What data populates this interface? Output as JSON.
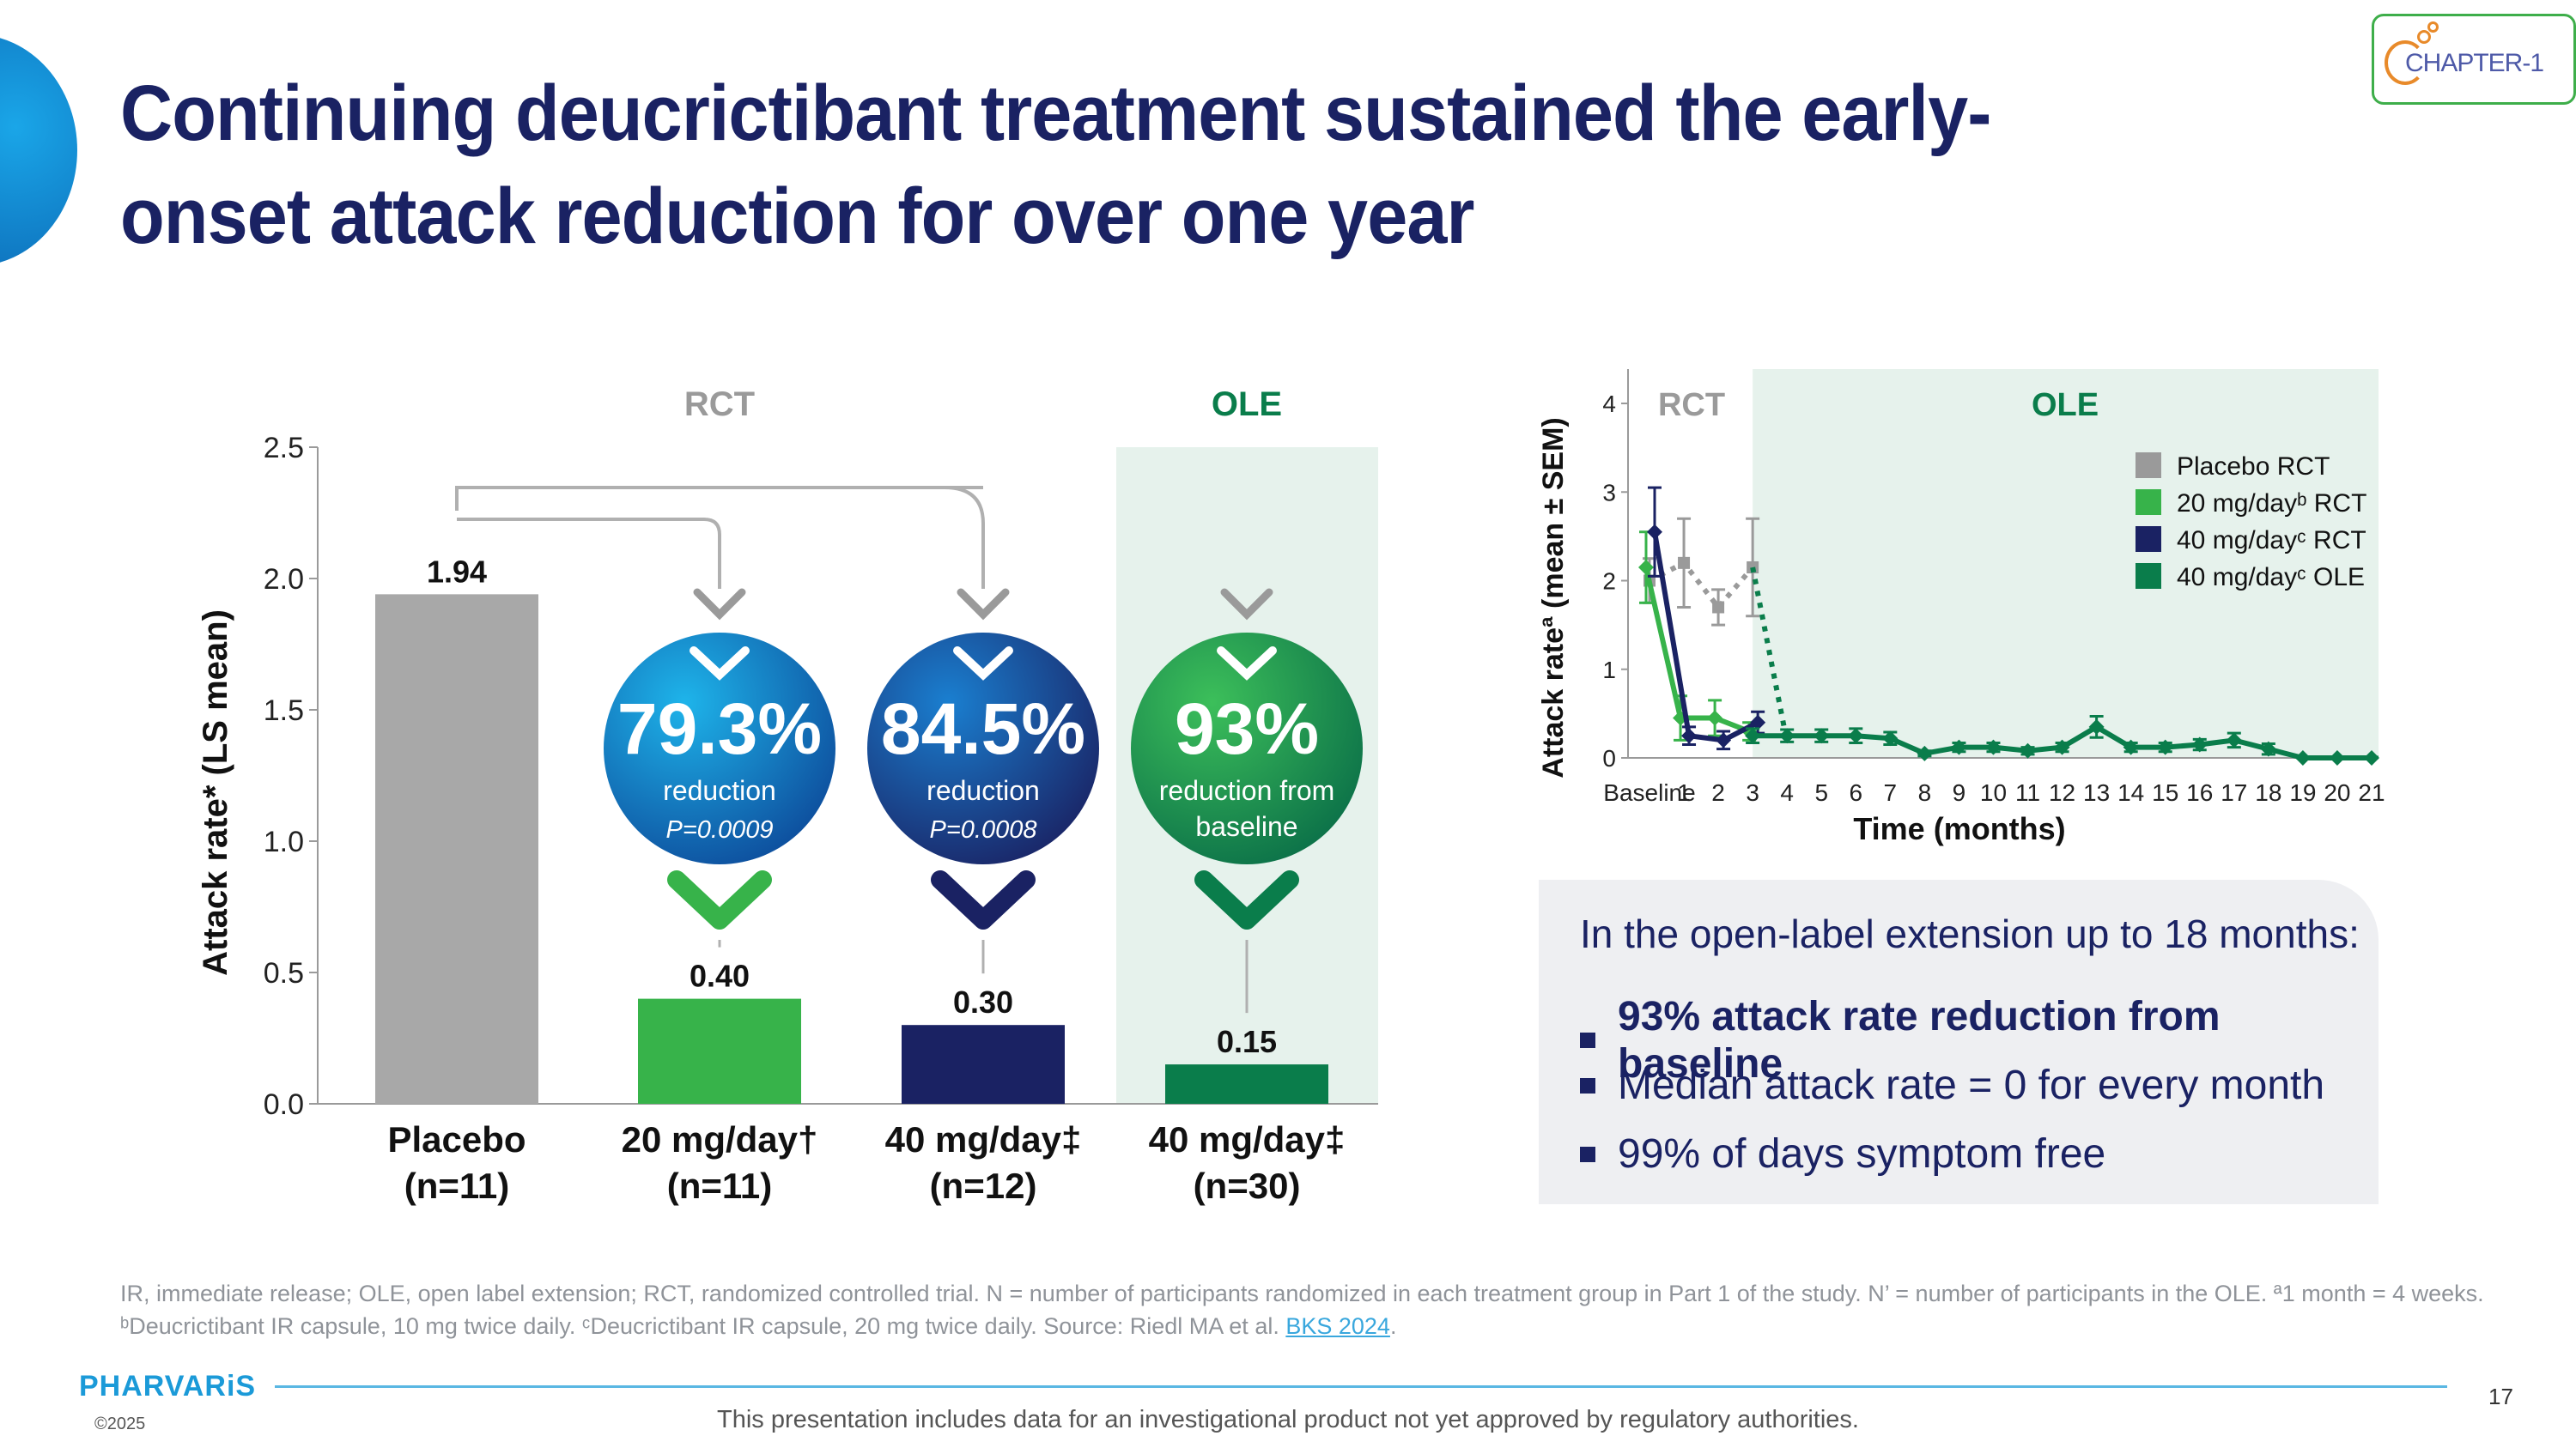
{
  "title": "Continuing deucrictibant treatment sustained the early-onset attack reduction for over one year",
  "logo": {
    "text": "CHAPTER-1"
  },
  "colors": {
    "navy": "#1a2263",
    "placebo": "#a8a8a8",
    "green20": "#37b34a",
    "navy40": "#1a2263",
    "ole": "#0a7d4b",
    "ole_bg": "#e6f2ec"
  },
  "chart_data": [
    {
      "type": "bar",
      "ylabel": "Attack rate* (LS mean)",
      "ylim": [
        0,
        2.5
      ],
      "yticks": [
        "0.0",
        "0.5",
        "1.0",
        "1.5",
        "2.0",
        "2.5"
      ],
      "groups": [
        {
          "label": "RCT",
          "color": "#9a9a9a"
        },
        {
          "label": "OLE",
          "color": "#0a7d4b"
        }
      ],
      "categories": [
        {
          "line1": "Placebo",
          "line2": "(n=11)"
        },
        {
          "line1": "20 mg/day†",
          "line2": "(n=11)"
        },
        {
          "line1": "40 mg/day‡",
          "line2": "(n=12)"
        },
        {
          "line1": "40 mg/day‡",
          "line2": "(n=30)"
        }
      ],
      "values": [
        1.94,
        0.4,
        0.3,
        0.15
      ],
      "value_labels": [
        "1.94",
        "0.40",
        "0.30",
        "0.15"
      ],
      "bar_colors": [
        "#a8a8a8",
        "#37b34a",
        "#1a2263",
        "#0a7d4b"
      ],
      "reductions": [
        {
          "pct": "79.3%",
          "text1": "reduction",
          "pval": "P=0.0009"
        },
        {
          "pct": "84.5%",
          "text1": "reduction",
          "pval": "P=0.0008"
        },
        {
          "pct": "93%",
          "text1": "reduction from",
          "text2": "baseline"
        }
      ]
    },
    {
      "type": "line",
      "ylabel": "Attack rateª (mean ± SEM)",
      "xlabel": "Time (months)",
      "ylim": [
        0,
        4
      ],
      "yticks": [
        "0",
        "1",
        "2",
        "3",
        "4"
      ],
      "x_ticks": [
        "Baseline",
        "1",
        "2",
        "3",
        "4",
        "5",
        "6",
        "7",
        "8",
        "9",
        "10",
        "11",
        "12",
        "13",
        "14",
        "15",
        "16",
        "17",
        "18",
        "19",
        "20",
        "21"
      ],
      "regions": [
        {
          "label": "RCT"
        },
        {
          "label": "OLE"
        }
      ],
      "series": [
        {
          "name": "Placebo RCT",
          "color": "#9a9a9a",
          "x": [
            0,
            1,
            2,
            3
          ],
          "y": [
            2.0,
            2.2,
            1.7,
            2.15
          ],
          "err": [
            0.25,
            0.5,
            0.2,
            0.55
          ]
        },
        {
          "name": "20 mg/dayᵇ RCT",
          "color": "#37b34a",
          "x": [
            0,
            1,
            2,
            3
          ],
          "y": [
            2.15,
            0.45,
            0.45,
            0.3
          ],
          "err": [
            0.4,
            0.25,
            0.2,
            0.1
          ]
        },
        {
          "name": "40 mg/dayᶜ RCT",
          "color": "#1a2263",
          "x": [
            0,
            1,
            2,
            3
          ],
          "y": [
            2.55,
            0.25,
            0.2,
            0.4
          ],
          "err": [
            0.5,
            0.1,
            0.1,
            0.12
          ]
        },
        {
          "name": "40 mg/dayᶜ OLE",
          "color": "#0a7d4b",
          "x": [
            3,
            4,
            5,
            6,
            7,
            8,
            9,
            10,
            11,
            12,
            13,
            14,
            15,
            16,
            17,
            18,
            19,
            20,
            21
          ],
          "y": [
            0.25,
            0.25,
            0.25,
            0.25,
            0.22,
            0.05,
            0.12,
            0.12,
            0.08,
            0.12,
            0.35,
            0.12,
            0.12,
            0.15,
            0.2,
            0.1,
            0.0,
            0.0,
            0.0
          ],
          "err": [
            0.08,
            0.07,
            0.07,
            0.08,
            0.07,
            0.03,
            0.05,
            0.05,
            0.04,
            0.05,
            0.12,
            0.05,
            0.05,
            0.06,
            0.08,
            0.06,
            0.01,
            0.01,
            0.01
          ]
        }
      ]
    }
  ],
  "summary": {
    "intro": "In the open-label extension up to 18 months:",
    "bullets": [
      "93% attack rate reduction from baseline",
      "Median attack rate = 0 for every month",
      "99% of days symptom free"
    ]
  },
  "footnote": {
    "line1": "IR, immediate release; OLE, open label extension; RCT, randomized controlled trial. N = number of participants randomized in each treatment group in Part 1 of the study. N’ = number of participants in the OLE. ª1 month = 4 weeks.",
    "line2_prefix": "ᵇDeucrictibant IR capsule, 10 mg twice daily. ᶜDeucrictibant IR capsule, 20 mg twice daily. Source: Riedl MA et al. ",
    "link": "BKS 2024",
    "line2_suffix": "."
  },
  "brand": "PHARVARiS",
  "copyright": "©2025",
  "page_number": "17",
  "disclaimer": "This presentation includes data for an investigational product not yet approved by regulatory authorities."
}
